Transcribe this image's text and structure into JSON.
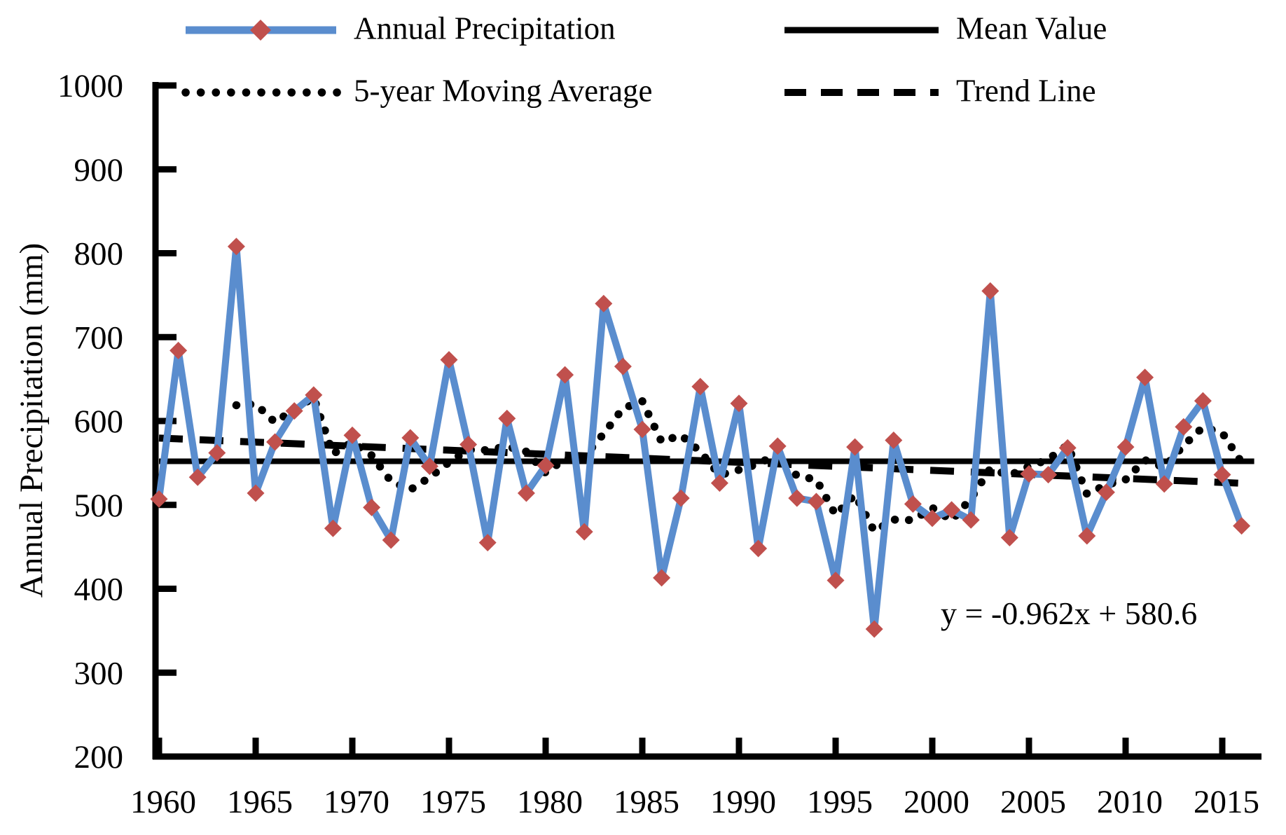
{
  "chart_data": {
    "type": "line",
    "ylabel": "Annual Precipitation (mm)",
    "xlabel": "",
    "ylim": [
      200,
      1000
    ],
    "ytick_step": 100,
    "yticks": [
      200,
      300,
      400,
      500,
      600,
      700,
      800,
      900,
      1000
    ],
    "xticks": [
      1960,
      1965,
      1970,
      1975,
      1980,
      1985,
      1990,
      1995,
      2000,
      2005,
      2010,
      2015
    ],
    "x_start_year": 1960,
    "x_end_year": 2016,
    "grid": false,
    "legend_position": "top",
    "annotation": "y = -0.962x + 580.6",
    "series": [
      {
        "name": "Annual Precipitation",
        "style": "solid",
        "color": "#5A8DCE",
        "marker": "diamond",
        "marker_color": "#C0504D",
        "years": [
          1960,
          1961,
          1962,
          1963,
          1964,
          1965,
          1966,
          1967,
          1968,
          1969,
          1970,
          1971,
          1972,
          1973,
          1974,
          1975,
          1976,
          1977,
          1978,
          1979,
          1980,
          1981,
          1982,
          1983,
          1984,
          1985,
          1986,
          1987,
          1988,
          1989,
          1990,
          1991,
          1992,
          1993,
          1994,
          1995,
          1996,
          1997,
          1998,
          1999,
          2000,
          2001,
          2002,
          2003,
          2004,
          2005,
          2006,
          2007,
          2008,
          2009,
          2010,
          2011,
          2012,
          2013,
          2014,
          2015,
          2016
        ],
        "values": [
          507,
          684,
          533,
          562,
          808,
          514,
          575,
          612,
          631,
          472,
          583,
          497,
          458,
          580,
          546,
          673,
          572,
          455,
          603,
          514,
          547,
          655,
          468,
          740,
          665,
          590,
          413,
          508,
          641,
          526,
          621,
          448,
          570,
          508,
          504,
          410,
          569,
          352,
          577,
          501,
          484,
          494,
          482,
          755,
          461,
          537,
          536,
          568,
          463,
          515,
          569,
          652,
          525,
          593,
          624,
          536,
          475
        ]
      },
      {
        "name": "Mean Value",
        "style": "solid-horizontal",
        "color": "#000000",
        "value": 552
      },
      {
        "name": "5-year Moving Average",
        "style": "dotted",
        "color": "#000000",
        "window": 5,
        "first_plotted_year": 1964
      },
      {
        "name": "Trend Line",
        "style": "dashed",
        "color": "#000000",
        "equation_slope": -0.962,
        "equation_intercept": 580.6
      }
    ]
  },
  "legend": {
    "items": [
      {
        "label": "Annual Precipitation"
      },
      {
        "label": "Mean Value"
      },
      {
        "label": "5-year Moving Average"
      },
      {
        "label": "Trend Line"
      }
    ]
  },
  "colors": {
    "line_blue": "#5A8DCE",
    "marker_red": "#C0504D",
    "black": "#000000",
    "background": "#ffffff"
  }
}
